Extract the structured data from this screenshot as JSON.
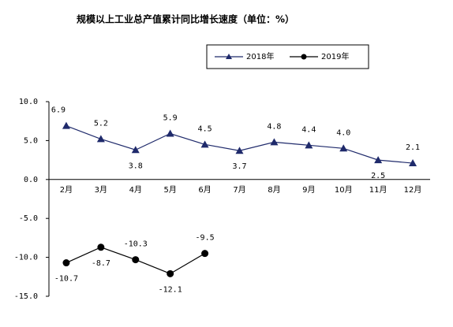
{
  "chart_data": {
    "type": "line",
    "title": "规模以上工业总产值累计同比增长速度（单位：%）",
    "categories": [
      "2月",
      "3月",
      "4月",
      "5月",
      "6月",
      "7月",
      "8月",
      "9月",
      "10月",
      "11月",
      "12月"
    ],
    "series": [
      {
        "name": "2018年",
        "color": "#1f2a6b",
        "marker": "triangle",
        "values": [
          6.9,
          5.2,
          3.8,
          5.9,
          4.5,
          3.7,
          4.8,
          4.4,
          4.0,
          2.5,
          2.1
        ],
        "value_labels": [
          "6.9",
          "5.2",
          "3.8",
          "5.9",
          "4.5",
          "3.7",
          "4.8",
          "4.4",
          "4.0",
          "2.5",
          "2.1"
        ]
      },
      {
        "name": "2019年",
        "color": "#000000",
        "marker": "circle",
        "values": [
          -10.7,
          -8.7,
          -10.3,
          -12.1,
          -9.5,
          null,
          null,
          null,
          null,
          null,
          null
        ],
        "value_labels": [
          "-10.7",
          "-8.7",
          "-10.3",
          "-12.1",
          "-9.5",
          null,
          null,
          null,
          null,
          null,
          null
        ]
      }
    ],
    "ylim": [
      -15,
      10
    ],
    "yticks": [
      {
        "value": 10,
        "label": "10.0"
      },
      {
        "value": 5,
        "label": "5.0"
      },
      {
        "value": 0,
        "label": "0.0"
      },
      {
        "value": -5,
        "label": "-5.0"
      },
      {
        "value": -10,
        "label": "-10.0"
      },
      {
        "value": -15,
        "label": "-15.0"
      }
    ],
    "legend": "top"
  }
}
